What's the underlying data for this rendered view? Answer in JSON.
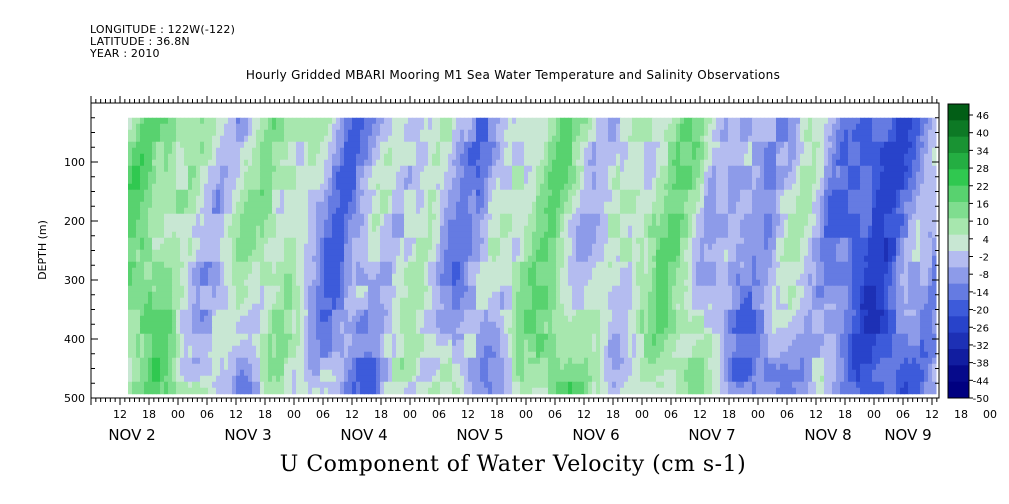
{
  "header": {
    "longitude": "LONGITUDE : 122W(-122)",
    "latitude": "LATITUDE : 36.8N",
    "year": "YEAR : 2010"
  },
  "chart_data": {
    "type": "heatmap",
    "title": "Hourly Gridded MBARI Mooring M1 Sea Water Temperature and Salinity Observations",
    "xlabel": "U Component of Water Velocity (cm s-1)",
    "ylabel": "DEPTH (m)",
    "ylim": [
      500,
      0
    ],
    "y_inverted": true,
    "y_ticks": [
      "100",
      "200",
      "300",
      "400",
      "500"
    ],
    "x_hour_ticks": [
      "12",
      "18",
      "00",
      "06",
      "12",
      "18",
      "00",
      "06",
      "12",
      "18",
      "00",
      "06",
      "12",
      "18",
      "00",
      "06",
      "12",
      "18",
      "00",
      "06",
      "12",
      "18",
      "00",
      "06",
      "12",
      "18",
      "00",
      "06",
      "12",
      "18",
      "00",
      "06"
    ],
    "x_day_labels": [
      "NOV 2",
      "NOV 3",
      "NOV 4",
      "NOV 5",
      "NOV 6",
      "NOV 7",
      "NOV 8",
      "NOV 9"
    ],
    "colorbar": {
      "min": -50,
      "max": 50,
      "step": 6,
      "tick_labels": [
        "46",
        "40",
        "34",
        "28",
        "22",
        "16",
        "10",
        "4",
        "-2",
        "-8",
        "-14",
        "-20",
        "-26",
        "-32",
        "-38",
        "-44",
        "-50"
      ],
      "colors": {
        "neg_deep": "#000080",
        "neg_mid": "#3050d8",
        "neg_light": "#c8ccf4",
        "pos_light": "#c8f0c8",
        "pos_mid": "#30c850",
        "pos_deep": "#005a14"
      }
    },
    "data_depth_range_m": [
      25,
      485
    ],
    "pattern": "U velocity field alternates between weak negative (blue) and weak positive (green) bands with depth and time; mostly within -20 to 20 cm/s"
  }
}
